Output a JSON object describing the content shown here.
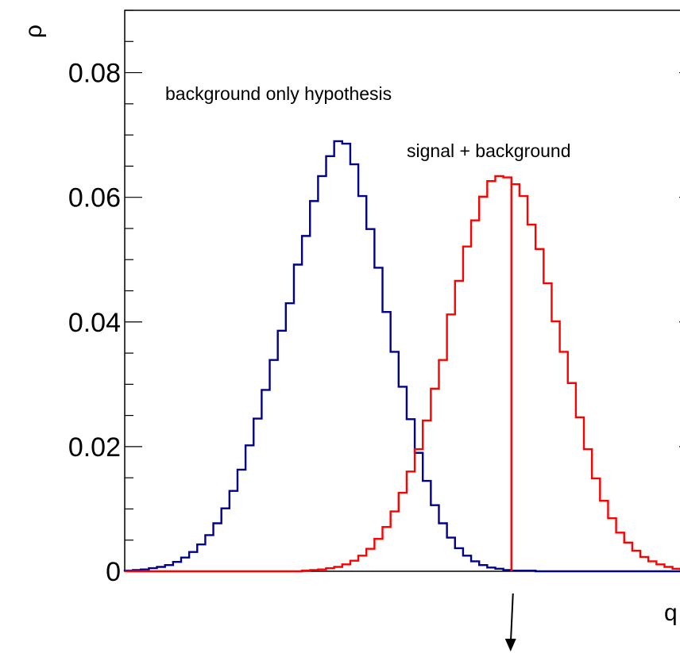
{
  "chart_data": {
    "type": "line",
    "title": "",
    "ylabel": "ρ",
    "xlabel": "q",
    "ylim": [
      0,
      0.09
    ],
    "yticks": [
      "0",
      "0.02",
      "0.04",
      "0.06",
      "0.08"
    ],
    "ytick_values": [
      0,
      0.02,
      0.04,
      0.06,
      0.08
    ],
    "grid": false,
    "colors": {
      "background": "#00008b",
      "signal": "#ff0000",
      "axis": "#000000"
    },
    "annotations": [
      {
        "key": "background",
        "text": "background only hypothesis"
      },
      {
        "key": "signal",
        "text": "signal + background"
      }
    ],
    "series": [
      {
        "key": "background",
        "values": [
          0.0001,
          0.0002,
          0.0003,
          0.0005,
          0.0007,
          0.001,
          0.0015,
          0.0022,
          0.0031,
          0.0043,
          0.0058,
          0.0077,
          0.0101,
          0.0129,
          0.0163,
          0.0202,
          0.0245,
          0.0291,
          0.0339,
          0.0386,
          0.043,
          0.0492,
          0.0538,
          0.0594,
          0.0634,
          0.0666,
          0.069,
          0.0686,
          0.0653,
          0.0602,
          0.0549,
          0.0487,
          0.0416,
          0.0352,
          0.0296,
          0.0244,
          0.019,
          0.0145,
          0.0106,
          0.0077,
          0.0054,
          0.0037,
          0.0025,
          0.0016,
          0.001,
          0.0006,
          0.0004,
          0.0002,
          0.0001,
          0.0001,
          0.0001,
          0.0,
          0.0,
          0.0,
          0.0,
          0.0,
          0.0,
          0.0,
          0.0,
          0.0,
          0.0,
          0.0,
          0.0,
          0.0,
          0.0,
          0.0,
          0.0,
          0.0,
          0.0,
          0.0,
          0.0
        ]
      },
      {
        "key": "signal",
        "values": [
          0,
          0,
          0,
          0,
          0,
          0,
          0,
          0,
          0,
          0,
          0,
          0,
          0,
          0,
          0,
          0,
          0,
          0,
          0,
          0,
          0,
          0,
          0.0001,
          0.0002,
          0.0003,
          0.0005,
          0.0007,
          0.0011,
          0.0017,
          0.0025,
          0.0036,
          0.0052,
          0.0071,
          0.0096,
          0.0126,
          0.016,
          0.0196,
          0.0242,
          0.0293,
          0.0339,
          0.0412,
          0.0466,
          0.0521,
          0.0563,
          0.0601,
          0.0626,
          0.0634,
          0.0632,
          0.0621,
          0.0602,
          0.0556,
          0.0517,
          0.0462,
          0.0401,
          0.0352,
          0.0302,
          0.0247,
          0.0196,
          0.0149,
          0.0113,
          0.0085,
          0.0062,
          0.0046,
          0.0033,
          0.0023,
          0.0016,
          0.0011,
          0.0007,
          0.0004,
          0.0003,
          0.0002
        ]
      }
    ],
    "marker": {
      "type": "vertical-line",
      "bin": 48,
      "color": "#ff0000",
      "arrow": "down",
      "arrow_color": "#000000"
    }
  }
}
